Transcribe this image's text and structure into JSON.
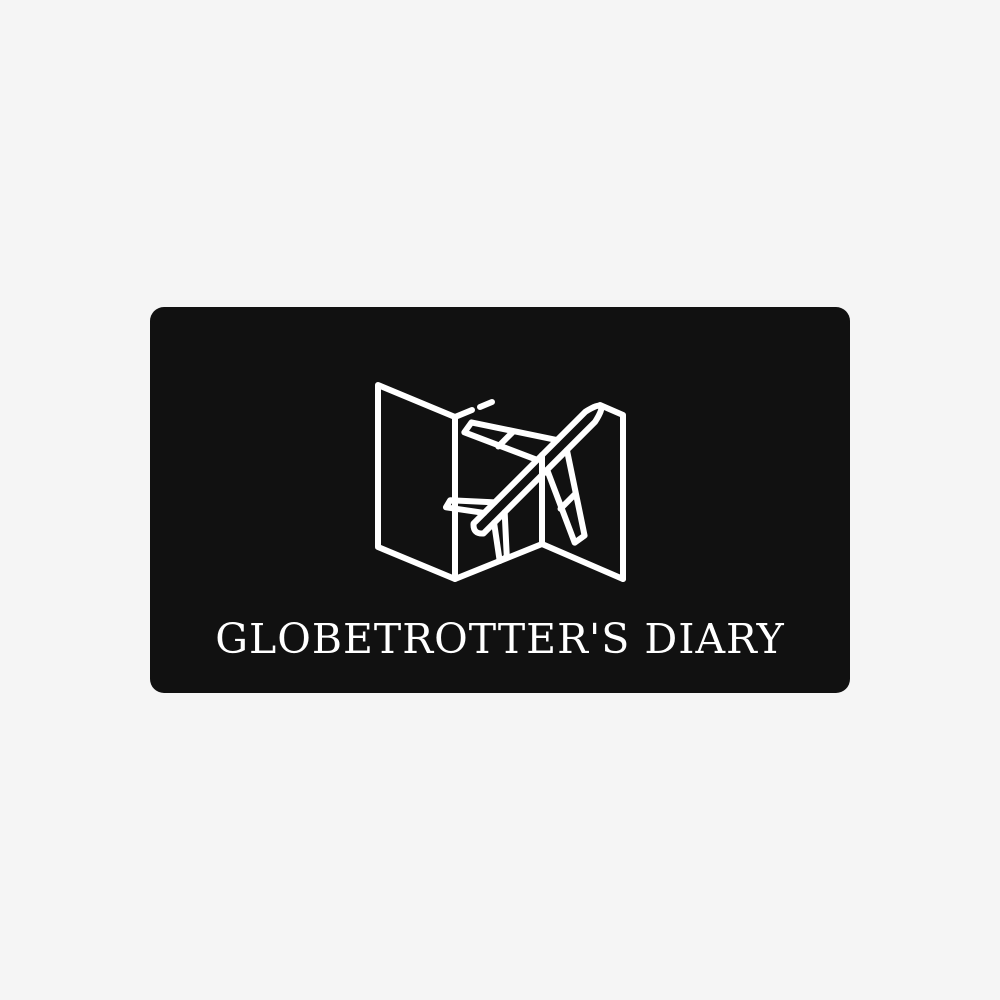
{
  "logo": {
    "brand_name": "GLOBETROTTER'S DIARY",
    "icon": "folded-map-with-airplane-icon",
    "colors": {
      "page_background": "#f5f5f5",
      "card_background": "#111111",
      "foreground": "#ffffff"
    }
  }
}
